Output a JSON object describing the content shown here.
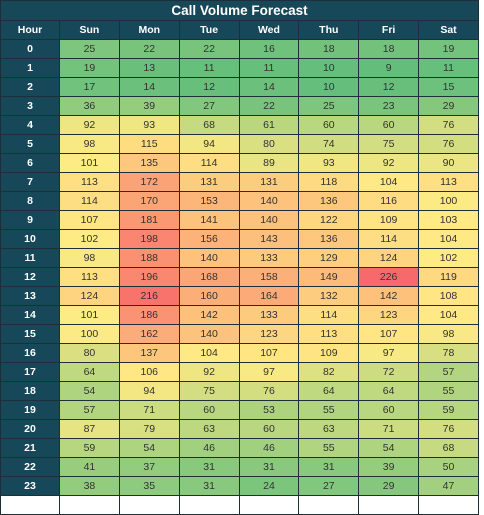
{
  "title": "Call Volume Forecast",
  "header": {
    "hour_label": "Hour",
    "days": [
      "Sun",
      "Mon",
      "Tue",
      "Wed",
      "Thu",
      "Fri",
      "Sat"
    ]
  },
  "rows": [
    {
      "hour": "0",
      "values": [
        25,
        22,
        22,
        16,
        18,
        18,
        19
      ]
    },
    {
      "hour": "1",
      "values": [
        19,
        13,
        11,
        11,
        10,
        9,
        11
      ]
    },
    {
      "hour": "2",
      "values": [
        17,
        14,
        12,
        14,
        10,
        12,
        15
      ]
    },
    {
      "hour": "3",
      "values": [
        36,
        39,
        27,
        22,
        25,
        23,
        29
      ]
    },
    {
      "hour": "4",
      "values": [
        92,
        93,
        68,
        61,
        60,
        60,
        76
      ]
    },
    {
      "hour": "5",
      "values": [
        98,
        115,
        94,
        80,
        74,
        75,
        76
      ]
    },
    {
      "hour": "6",
      "values": [
        101,
        135,
        114,
        89,
        93,
        92,
        90
      ]
    },
    {
      "hour": "7",
      "values": [
        113,
        172,
        131,
        131,
        118,
        104,
        113
      ]
    },
    {
      "hour": "8",
      "values": [
        114,
        170,
        153,
        140,
        136,
        116,
        100
      ]
    },
    {
      "hour": "9",
      "values": [
        107,
        181,
        141,
        140,
        122,
        109,
        103
      ]
    },
    {
      "hour": "10",
      "values": [
        102,
        198,
        156,
        143,
        136,
        114,
        104
      ]
    },
    {
      "hour": "11",
      "values": [
        98,
        188,
        140,
        133,
        129,
        124,
        102
      ]
    },
    {
      "hour": "12",
      "values": [
        113,
        196,
        168,
        158,
        149,
        226,
        119
      ]
    },
    {
      "hour": "13",
      "values": [
        124,
        216,
        160,
        164,
        132,
        142,
        108
      ]
    },
    {
      "hour": "14",
      "values": [
        101,
        186,
        142,
        133,
        114,
        123,
        104
      ]
    },
    {
      "hour": "15",
      "values": [
        100,
        162,
        140,
        123,
        113,
        107,
        98
      ]
    },
    {
      "hour": "16",
      "values": [
        80,
        137,
        104,
        107,
        109,
        97,
        78
      ]
    },
    {
      "hour": "17",
      "values": [
        64,
        106,
        92,
        97,
        82,
        72,
        57
      ]
    },
    {
      "hour": "18",
      "values": [
        54,
        94,
        75,
        76,
        64,
        64,
        55
      ]
    },
    {
      "hour": "19",
      "values": [
        57,
        71,
        60,
        53,
        55,
        60,
        59
      ]
    },
    {
      "hour": "20",
      "values": [
        87,
        79,
        63,
        60,
        63,
        71,
        76
      ]
    },
    {
      "hour": "21",
      "values": [
        59,
        54,
        46,
        46,
        55,
        54,
        68
      ]
    },
    {
      "hour": "22",
      "values": [
        41,
        37,
        31,
        31,
        31,
        39,
        50
      ]
    },
    {
      "hour": "23",
      "values": [
        38,
        35,
        31,
        24,
        27,
        29,
        47
      ]
    }
  ],
  "color_scale": {
    "low": "#63be7b",
    "mid": "#ffeb84",
    "high": "#f8696b",
    "min_value": 9,
    "mid_value": 102,
    "max_value": 226
  },
  "colors": {
    "header_bg": "#17485a",
    "header_text": "#ffffff",
    "grid_line": "#1f2f3a"
  }
}
